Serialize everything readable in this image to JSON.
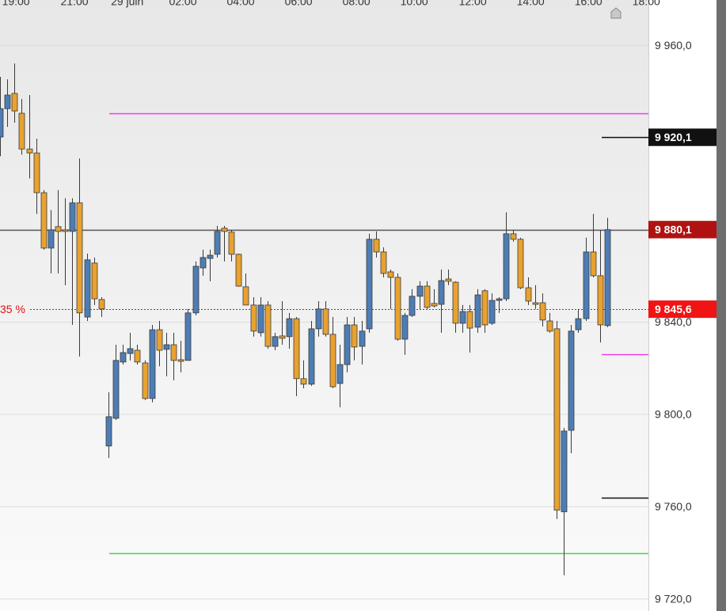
{
  "chart_data": {
    "type": "candlestick",
    "up_color": "#4d7db4",
    "down_color": "#e9a22f",
    "xlim": [
      0,
      89.7
    ],
    "xticks": [
      {
        "value": 2.2,
        "label": "19:00"
      },
      {
        "value": 10.3,
        "label": "21:00"
      },
      {
        "value": 17.6,
        "label": "29 juin"
      },
      {
        "value": 25.3,
        "label": "02:00"
      },
      {
        "value": 33.3,
        "label": "04:00"
      },
      {
        "value": 41.3,
        "label": "06:00"
      },
      {
        "value": 49.3,
        "label": "08:00"
      },
      {
        "value": 57.3,
        "label": "10:00"
      },
      {
        "value": 65.4,
        "label": "12:00"
      },
      {
        "value": 73.4,
        "label": "14:00"
      },
      {
        "value": 81.4,
        "label": "16:00"
      },
      {
        "value": 89.4,
        "label": "18:00"
      }
    ],
    "ylim": [
      9714.8,
      9979.6
    ],
    "yticks": [
      {
        "value": 9960,
        "label": "9 960,0"
      },
      {
        "value": 9840,
        "label": "9 840,0"
      },
      {
        "value": 9800,
        "label": "9 800,0"
      },
      {
        "value": 9760,
        "label": "9 760,0"
      },
      {
        "value": 9720,
        "label": "9 720,0"
      }
    ],
    "grid": true,
    "open": [
      9920.2,
      9932.5,
      9939.1,
      9930.5,
      9915.0,
      9913.3,
      9896.1,
      9872.1,
      9881.4,
      9880.0,
      9879.3,
      9891.7,
      9842.2,
      9865.6,
      9849.8,
      9786.3,
      9798.3,
      9822.7,
      9826.4,
      9827.8,
      9822.3,
      9806.9,
      9836.7,
      9828.2,
      9830.2,
      9823.7,
      9823.4,
      9844.0,
      9863.5,
      9867.6,
      9869.4,
      9880.7,
      9879.0,
      9869.4,
      9855.3,
      9847.4,
      9835.4,
      9847.4,
      9829.5,
      9834.0,
      9833.7,
      9841.5,
      9815.5,
      9813.1,
      9837.1,
      9845.7,
      9834.7,
      9813.4,
      9821.6,
      9838.8,
      9829.5,
      9837.1,
      9875.9,
      9870.4,
      9861.8,
      9859.4,
      9832.6,
      9842.9,
      9851.2,
      9855.6,
      9848.1,
      9847.7,
      9858.7,
      9857.3,
      9839.5,
      9844.6,
      9837.8,
      9853.6,
      9839.5,
      9849.4,
      9850.1,
      9878.3,
      9875.9,
      9854.9,
      9848.4,
      9848.4,
      9840.5,
      9837.1,
      9757.8,
      9793.1,
      9836.7,
      9841.5,
      9870.4,
      9860.1,
      9838.5
    ],
    "high": [
      9946.3,
      9945.2,
      9952.1,
      9936.7,
      9938.4,
      9919.5,
      9897.2,
      9888.6,
      9897.2,
      9893.7,
      9893.7,
      9910.9,
      9869.7,
      9868.0,
      9850.8,
      9809.6,
      9830.2,
      9830.2,
      9835.4,
      9830.2,
      9823.4,
      9838.8,
      9840.5,
      9835.4,
      9835.4,
      9831.9,
      9845.7,
      9866.3,
      9871.4,
      9871.4,
      9881.7,
      9881.7,
      9880.0,
      9869.7,
      9861.1,
      9850.8,
      9850.8,
      9849.1,
      9835.4,
      9849.1,
      9844.0,
      9842.2,
      9823.4,
      9840.5,
      9849.1,
      9849.1,
      9842.2,
      9830.2,
      9842.2,
      9842.2,
      9840.5,
      9878.3,
      9879.3,
      9872.4,
      9862.8,
      9861.1,
      9844.0,
      9854.3,
      9857.7,
      9857.7,
      9854.3,
      9862.8,
      9862.8,
      9857.7,
      9847.4,
      9847.4,
      9854.3,
      9854.3,
      9852.5,
      9850.8,
      9887.6,
      9880.0,
      9876.6,
      9859.4,
      9856.0,
      9852.5,
      9844.0,
      9840.5,
      9794.2,
      9838.8,
      9845.7,
      9876.6,
      9886.9,
      9880.0,
      9885.2
    ],
    "low": [
      9911.9,
      9924.6,
      9926.4,
      9912.6,
      9902.3,
      9886.9,
      9871.4,
      9861.1,
      9861.1,
      9856.0,
      9838.8,
      9825.1,
      9840.5,
      9847.4,
      9842.2,
      9781.1,
      9797.6,
      9821.6,
      9823.4,
      9821.6,
      9806.2,
      9805.2,
      9820.9,
      9816.5,
      9814.8,
      9818.2,
      9823.4,
      9842.9,
      9860.1,
      9857.7,
      9868.0,
      9866.3,
      9866.3,
      9855.3,
      9847.4,
      9833.7,
      9833.7,
      9828.5,
      9827.8,
      9830.2,
      9828.5,
      9807.9,
      9811.3,
      9812.4,
      9833.7,
      9833.7,
      9811.3,
      9803.1,
      9818.2,
      9823.4,
      9821.6,
      9835.4,
      9868.0,
      9859.4,
      9845.7,
      9831.9,
      9825.8,
      9842.2,
      9845.7,
      9845.7,
      9846.4,
      9835.4,
      9856.0,
      9835.4,
      9835.4,
      9826.8,
      9835.4,
      9835.4,
      9838.8,
      9844.0,
      9849.1,
      9874.9,
      9854.3,
      9847.4,
      9845.7,
      9838.1,
      9835.4,
      9754.7,
      9730.3,
      9783.2,
      9835.4,
      9840.5,
      9859.4,
      9831.2,
      9837.8
    ],
    "close": [
      9932.5,
      9938.4,
      9931.5,
      9915.0,
      9913.3,
      9896.1,
      9872.1,
      9880.0,
      9879.3,
      9879.3,
      9891.7,
      9844.0,
      9867.0,
      9850.1,
      9845.7,
      9799.0,
      9823.4,
      9826.8,
      9828.5,
      9822.7,
      9806.9,
      9836.7,
      9827.8,
      9830.2,
      9823.4,
      9823.0,
      9844.0,
      9864.2,
      9868.0,
      9869.0,
      9879.3,
      9879.3,
      9869.4,
      9855.6,
      9847.4,
      9836.1,
      9847.4,
      9829.5,
      9833.7,
      9833.0,
      9841.5,
      9815.5,
      9813.1,
      9837.1,
      9845.7,
      9834.7,
      9812.0,
      9821.6,
      9838.8,
      9829.2,
      9836.1,
      9875.9,
      9870.4,
      9861.1,
      9859.4,
      9832.6,
      9842.9,
      9851.2,
      9855.6,
      9846.4,
      9847.0,
      9858.0,
      9857.7,
      9839.5,
      9844.6,
      9837.4,
      9851.8,
      9838.8,
      9849.4,
      9850.1,
      9878.3,
      9875.9,
      9854.9,
      9849.1,
      9847.7,
      9840.9,
      9836.1,
      9758.5,
      9792.8,
      9836.1,
      9841.5,
      9870.4,
      9860.1,
      9838.8,
      9880.1
    ],
    "levels": [
      {
        "value": 9930.5,
        "color": "#f03cf0"
      },
      {
        "value": 9880.0,
        "color": "#555555"
      },
      {
        "value": 9845.6,
        "color": "#e01010",
        "dotted": true,
        "label": "35 %"
      },
      {
        "value": 9739.9,
        "color": "#3cdc3c"
      },
      {
        "value": 9920.1,
        "color": "#111111"
      },
      {
        "value": 9826.0,
        "color": "#f03cf0"
      },
      {
        "value": 9764.0,
        "color": "#111111"
      }
    ],
    "price_tags": [
      {
        "value": 9920.1,
        "label": "9 920,1",
        "color": "#111111"
      },
      {
        "value": 9880.1,
        "label": "9 880,1",
        "color": "#b01212"
      },
      {
        "value": 9845.6,
        "label": "9 845,6",
        "color": "#f01414"
      }
    ]
  }
}
